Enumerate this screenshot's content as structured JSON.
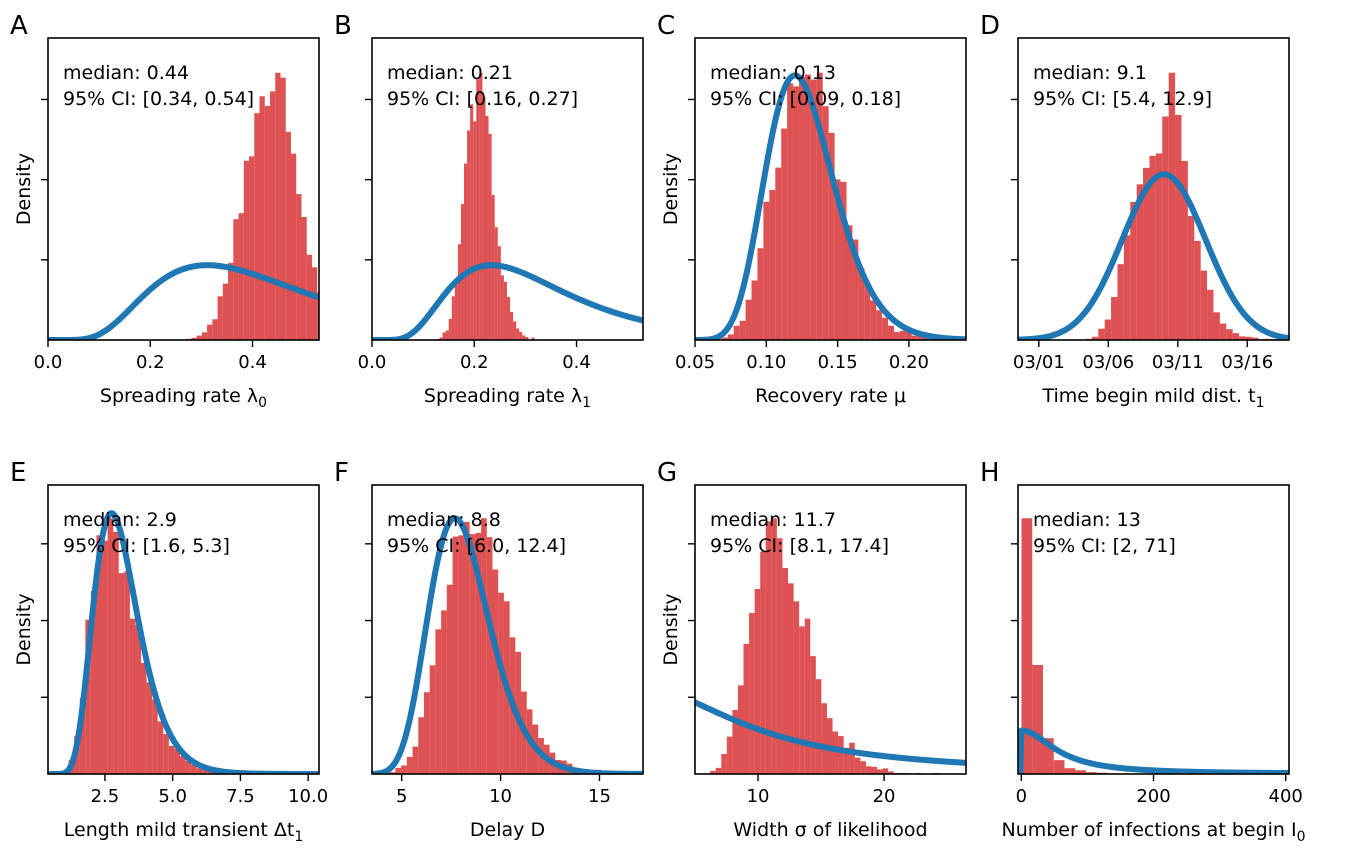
{
  "chart_data": [
    {
      "type": "histogram",
      "panel": "A",
      "xlabel": "Spreading rate λ",
      "xlabel_sub": "0",
      "ylabel": "Density",
      "xlim": [
        0.0,
        0.53
      ],
      "xticks": [
        0.0,
        0.2,
        0.4
      ],
      "xtick_labels": [
        "0.0",
        "0.2",
        "0.4"
      ],
      "ymax": 1.13,
      "yticks": [
        0.3,
        0.6,
        0.9
      ],
      "annotation": [
        "median: 0.44",
        "95% CI: [0.34, 0.54]"
      ],
      "posterior": {
        "median": 0.44,
        "ci": [
          0.34,
          0.54
        ],
        "bins": 34
      },
      "prior": {
        "dist": "lognormal",
        "median": 0.4,
        "sigma": 0.5
      }
    },
    {
      "type": "histogram",
      "panel": "B",
      "xlabel": "Spreading rate λ",
      "xlabel_sub": "1",
      "ylabel": "",
      "xlim": [
        0.0,
        0.53
      ],
      "xticks": [
        0.0,
        0.2,
        0.4
      ],
      "xtick_labels": [
        "0.0",
        "0.2",
        "0.4"
      ],
      "ymax": 1.13,
      "yticks": [
        0.3,
        0.6,
        0.9
      ],
      "annotation": [
        "median: 0.21",
        "95% CI: [0.16, 0.27]"
      ],
      "posterior": {
        "median": 0.21,
        "ci": [
          0.16,
          0.27
        ],
        "bins": 34
      },
      "prior": {
        "dist": "lognormal",
        "median": 0.3,
        "sigma": 0.5
      }
    },
    {
      "type": "histogram",
      "panel": "C",
      "xlabel": "Recovery rate μ",
      "xlabel_sub": "",
      "ylabel": "Density",
      "xlim": [
        0.05,
        0.24
      ],
      "xticks": [
        0.05,
        0.1,
        0.15,
        0.2
      ],
      "xtick_labels": [
        "0.05",
        "0.10",
        "0.15",
        "0.20"
      ],
      "ymax": 1.13,
      "yticks": [
        0.3,
        0.6,
        0.9
      ],
      "annotation": [
        "median: 0.13",
        "95% CI: [0.09, 0.18]"
      ],
      "posterior": {
        "median": 0.13,
        "ci": [
          0.09,
          0.18
        ],
        "bins": 40
      },
      "prior": {
        "dist": "lognormal",
        "median": 0.125,
        "sigma": 0.2,
        "peak_rel": 0.99
      }
    },
    {
      "type": "histogram",
      "panel": "D",
      "xlabel": "Time begin mild dist. t",
      "xlabel_sub": "1",
      "ylabel": "",
      "xlim": [
        -1.5,
        18.0
      ],
      "xticks": [
        0,
        5,
        10,
        15
      ],
      "xtick_labels": [
        "03/01",
        "03/06",
        "03/11",
        "03/16"
      ],
      "ymax": 1.13,
      "yticks": [
        0.3,
        0.6,
        0.9
      ],
      "annotation": [
        "median: 9.1",
        "95% CI: [5.4, 12.9]"
      ],
      "posterior": {
        "median": 9.1,
        "ci": [
          5.4,
          12.9
        ],
        "bins": 30
      },
      "prior": {
        "dist": "normal",
        "mean": 9.0,
        "sd": 3.0,
        "peak_rel": 0.62
      }
    },
    {
      "type": "histogram",
      "panel": "E",
      "xlabel": "Length mild transient Δt",
      "xlabel_sub": "1",
      "ylabel": "Density",
      "xlim": [
        0.4,
        10.4
      ],
      "xticks": [
        2.5,
        5.0,
        7.5,
        10.0
      ],
      "xtick_labels": [
        "2.5",
        "5.0",
        "7.5",
        "10.0"
      ],
      "ymax": 1.13,
      "yticks": [
        0.3,
        0.6,
        0.9
      ],
      "annotation": [
        "median: 2.9",
        "95% CI: [1.6, 5.3]"
      ],
      "posterior": {
        "median": 2.9,
        "ci": [
          1.6,
          5.3
        ],
        "bins": 36
      },
      "prior": {
        "dist": "lognormal",
        "median": 3.0,
        "sigma": 0.3,
        "peak_rel": 1.02
      }
    },
    {
      "type": "histogram",
      "panel": "F",
      "xlabel": "Delay D",
      "xlabel_sub": "",
      "ylabel": "",
      "xlim": [
        3.5,
        17.2
      ],
      "xticks": [
        5,
        10,
        15
      ],
      "xtick_labels": [
        "5",
        "10",
        "15"
      ],
      "ymax": 1.13,
      "yticks": [
        0.3,
        0.6,
        0.9
      ],
      "annotation": [
        "median: 8.8",
        "95% CI: [6.0, 12.4]"
      ],
      "posterior": {
        "median": 8.8,
        "ci": [
          6.0,
          12.4
        ],
        "bins": 44
      },
      "prior": {
        "dist": "lognormal",
        "median": 8.0,
        "sigma": 0.2,
        "peak_rel": 1.0
      }
    },
    {
      "type": "histogram",
      "panel": "G",
      "xlabel": "Width σ of likelihood",
      "xlabel_sub": "",
      "ylabel": "Density",
      "xlim": [
        5.0,
        26.5
      ],
      "xticks": [
        10,
        20
      ],
      "xtick_labels": [
        "10",
        "20"
      ],
      "ymax": 1.13,
      "yticks": [
        0.3,
        0.6,
        0.9
      ],
      "annotation": [
        "median: 11.7",
        "95% CI: [8.1, 17.4]"
      ],
      "posterior": {
        "median": 11.7,
        "ci": [
          8.1,
          17.4
        ],
        "bins": 44
      },
      "prior": {
        "dist": "halfcauchy",
        "beta": 10,
        "height_at_left_rel": 0.28
      }
    },
    {
      "type": "histogram",
      "panel": "H",
      "xlabel": "Number of infections at begin I",
      "xlabel_sub": "0",
      "ylabel": "",
      "xlim": [
        -5,
        405
      ],
      "xticks": [
        0,
        200,
        400
      ],
      "xtick_labels": [
        "0",
        "200",
        "400"
      ],
      "ymax": 1.13,
      "yticks": [
        0.3,
        0.6,
        0.9
      ],
      "annotation": [
        "median: 13",
        "95% CI: [2, 71]"
      ],
      "posterior": {
        "median": 13,
        "ci": [
          2,
          71
        ],
        "bins": 20
      },
      "prior": {
        "dist": "halfcauchy",
        "beta": 60,
        "height_at_zero_rel": 0.17
      }
    }
  ]
}
